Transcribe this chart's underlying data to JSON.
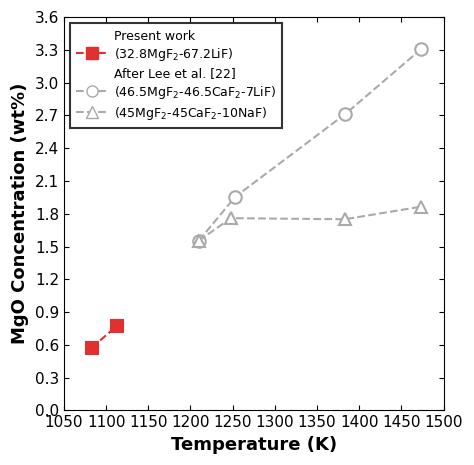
{
  "title": "",
  "xlabel": "Temperature (K)",
  "ylabel": "MgO Concentration (wt%)",
  "xlim": [
    1050,
    1500
  ],
  "ylim": [
    0.0,
    3.6
  ],
  "xticks": [
    1050,
    1100,
    1150,
    1200,
    1250,
    1300,
    1350,
    1400,
    1450,
    1500
  ],
  "yticks": [
    0.0,
    0.3,
    0.6,
    0.9,
    1.2,
    1.5,
    1.8,
    2.1,
    2.4,
    2.7,
    3.0,
    3.3,
    3.6
  ],
  "series": [
    {
      "label_header": "Present work",
      "label": "(32.8MgF$_2$-67.2LiF)",
      "x": [
        1083,
        1113
      ],
      "y": [
        0.575,
        0.775
      ],
      "color": "#e03030",
      "marker": "s",
      "linestyle": "--",
      "markersize": 9
    },
    {
      "label_header": "After Lee et al. [22]",
      "label": "(46.5MgF$_2$-46.5CaF$_2$-7LiF)",
      "x": [
        1210,
        1253,
        1383,
        1473
      ],
      "y": [
        1.555,
        1.955,
        2.71,
        3.305
      ],
      "color": "#aaaaaa",
      "marker": "o",
      "linestyle": "--",
      "markersize": 9
    },
    {
      "label": "(45MgF$_2$-45CaF$_2$-10NaF)",
      "x": [
        1210,
        1248,
        1383,
        1473
      ],
      "y": [
        1.555,
        1.76,
        1.75,
        1.865
      ],
      "color": "#aaaaaa",
      "marker": "^",
      "linestyle": "--",
      "markersize": 9
    }
  ],
  "background_color": "#ffffff",
  "grid": false
}
